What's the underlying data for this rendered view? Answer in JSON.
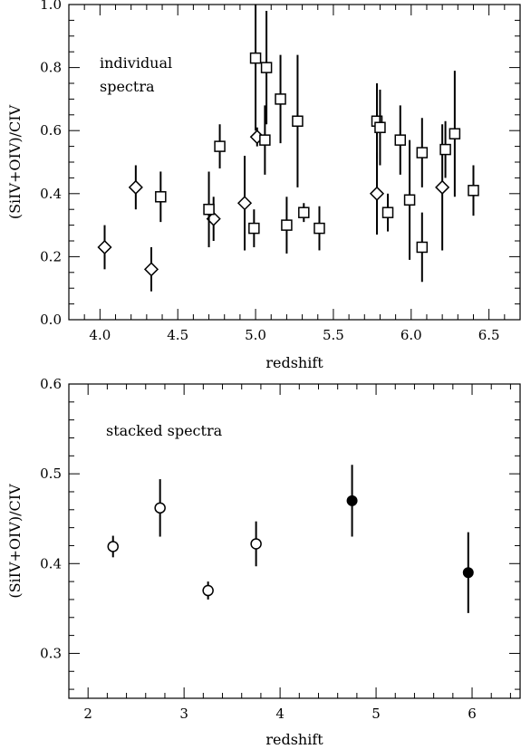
{
  "chart_data": [
    {
      "type": "scatter",
      "annotation": "individual\nspectra",
      "xlabel": "redshift",
      "ylabel": "(SiIV+OIV)/CIV",
      "xlim": [
        3.8,
        6.7
      ],
      "ylim": [
        0.0,
        1.0
      ],
      "x_ticks": [
        4.0,
        4.5,
        5.0,
        5.5,
        6.0,
        6.5
      ],
      "x_tick_labels": [
        "4.0",
        "4.5",
        "5.0",
        "5.5",
        "6.0",
        "6.5"
      ],
      "x_minor_step": 0.1,
      "y_ticks": [
        0.0,
        0.2,
        0.4,
        0.6,
        0.8,
        1.0
      ],
      "y_tick_labels": [
        "0.0",
        "0.2",
        "0.4",
        "0.6",
        "0.8",
        "1.0"
      ],
      "y_minor_step": 0.05,
      "grid": false,
      "series": [
        {
          "marker": "diamond",
          "points": [
            {
              "x": 4.03,
              "y": 0.23,
              "lo": 0.16,
              "hi": 0.3
            },
            {
              "x": 4.23,
              "y": 0.42,
              "lo": 0.35,
              "hi": 0.49
            },
            {
              "x": 4.33,
              "y": 0.16,
              "lo": 0.09,
              "hi": 0.23
            },
            {
              "x": 4.73,
              "y": 0.32,
              "lo": 0.25,
              "hi": 0.39
            },
            {
              "x": 4.93,
              "y": 0.37,
              "lo": 0.22,
              "hi": 0.52
            },
            {
              "x": 5.01,
              "y": 0.58,
              "lo": 0.55,
              "hi": 0.61
            },
            {
              "x": 5.78,
              "y": 0.4,
              "lo": 0.27,
              "hi": 0.53
            },
            {
              "x": 6.2,
              "y": 0.42,
              "lo": 0.22,
              "hi": 0.62
            }
          ]
        },
        {
          "marker": "square",
          "points": [
            {
              "x": 4.39,
              "y": 0.39,
              "lo": 0.31,
              "hi": 0.47
            },
            {
              "x": 4.7,
              "y": 0.35,
              "lo": 0.23,
              "hi": 0.47
            },
            {
              "x": 4.77,
              "y": 0.55,
              "lo": 0.48,
              "hi": 0.62
            },
            {
              "x": 4.99,
              "y": 0.29,
              "lo": 0.23,
              "hi": 0.35
            },
            {
              "x": 5.0,
              "y": 0.83,
              "lo": 0.6,
              "hi": 1.0
            },
            {
              "x": 5.06,
              "y": 0.57,
              "lo": 0.46,
              "hi": 0.68
            },
            {
              "x": 5.07,
              "y": 0.8,
              "lo": 0.62,
              "hi": 0.98
            },
            {
              "x": 5.16,
              "y": 0.7,
              "lo": 0.56,
              "hi": 0.84
            },
            {
              "x": 5.2,
              "y": 0.3,
              "lo": 0.21,
              "hi": 0.39
            },
            {
              "x": 5.27,
              "y": 0.63,
              "lo": 0.42,
              "hi": 0.84
            },
            {
              "x": 5.31,
              "y": 0.34,
              "lo": 0.31,
              "hi": 0.37
            },
            {
              "x": 5.41,
              "y": 0.29,
              "lo": 0.22,
              "hi": 0.36
            },
            {
              "x": 5.78,
              "y": 0.63,
              "lo": 0.51,
              "hi": 0.75
            },
            {
              "x": 5.8,
              "y": 0.61,
              "lo": 0.49,
              "hi": 0.73
            },
            {
              "x": 5.85,
              "y": 0.34,
              "lo": 0.28,
              "hi": 0.4
            },
            {
              "x": 5.93,
              "y": 0.57,
              "lo": 0.46,
              "hi": 0.68
            },
            {
              "x": 5.99,
              "y": 0.38,
              "lo": 0.19,
              "hi": 0.57
            },
            {
              "x": 6.07,
              "y": 0.53,
              "lo": 0.42,
              "hi": 0.64
            },
            {
              "x": 6.07,
              "y": 0.23,
              "lo": 0.12,
              "hi": 0.34
            },
            {
              "x": 6.22,
              "y": 0.54,
              "lo": 0.45,
              "hi": 0.63
            },
            {
              "x": 6.28,
              "y": 0.59,
              "lo": 0.39,
              "hi": 0.79
            },
            {
              "x": 6.4,
              "y": 0.41,
              "lo": 0.33,
              "hi": 0.49
            }
          ]
        }
      ]
    },
    {
      "type": "scatter",
      "annotation": "stacked spectra",
      "xlabel": "redshift",
      "ylabel": "(SiIV+OIV)/CIV",
      "xlim": [
        1.8,
        6.5
      ],
      "ylim": [
        0.25,
        0.6
      ],
      "x_ticks": [
        2,
        3,
        4,
        5,
        6
      ],
      "x_tick_labels": [
        "2",
        "3",
        "4",
        "5",
        "6"
      ],
      "x_minor_step": 0.2,
      "y_ticks": [
        0.3,
        0.4,
        0.5,
        0.6
      ],
      "y_tick_labels": [
        "0.3",
        "0.4",
        "0.5",
        "0.6"
      ],
      "y_minor_step": 0.02,
      "grid": false,
      "series": [
        {
          "marker": "open-circle",
          "points": [
            {
              "x": 2.26,
              "y": 0.419,
              "lo": 0.407,
              "hi": 0.431
            },
            {
              "x": 2.75,
              "y": 0.462,
              "lo": 0.43,
              "hi": 0.494
            },
            {
              "x": 3.25,
              "y": 0.37,
              "lo": 0.36,
              "hi": 0.38
            },
            {
              "x": 3.75,
              "y": 0.422,
              "lo": 0.397,
              "hi": 0.447
            }
          ]
        },
        {
          "marker": "filled-circle",
          "points": [
            {
              "x": 4.75,
              "y": 0.47,
              "lo": 0.43,
              "hi": 0.51
            },
            {
              "x": 5.96,
              "y": 0.39,
              "lo": 0.345,
              "hi": 0.435
            }
          ]
        }
      ]
    }
  ]
}
